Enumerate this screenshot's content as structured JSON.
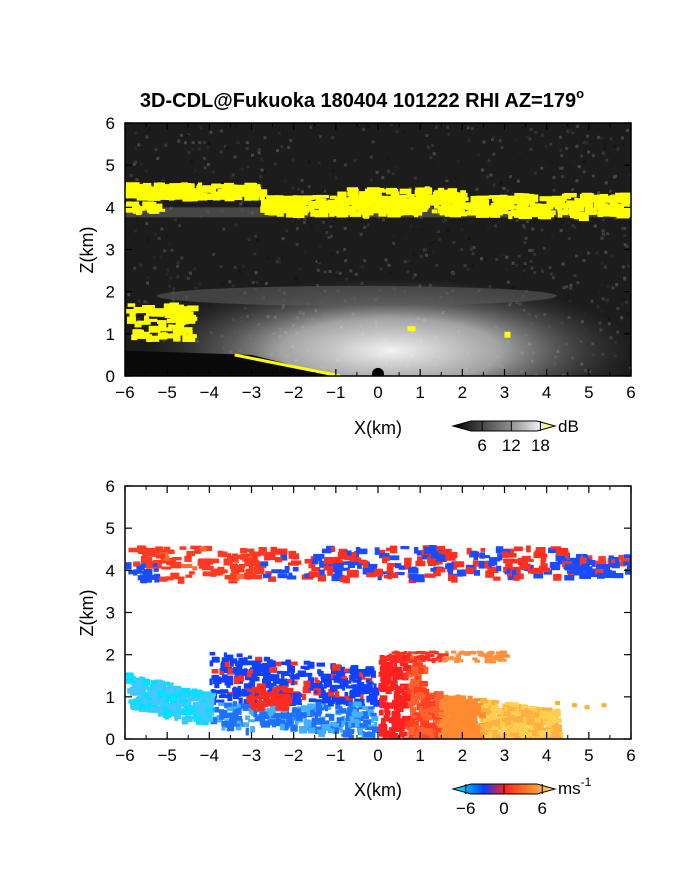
{
  "title": "3D-CDL@Fukuoka 180404 101222 RHI AZ=179",
  "title_superscript": "o",
  "colors": {
    "frame": "#000000",
    "background_top": "#1c1c1c",
    "echo_bright": "#ffffff",
    "highlight": "#ffff00",
    "velocity_negative": "#0040ff",
    "velocity_zero": "#ff2020",
    "velocity_positive": "#ffe060",
    "velocity_min": "#00ffff"
  },
  "chart_data": [
    {
      "type": "heatmap",
      "name": "reflectivity-panel",
      "quantity": "backscatter intensity",
      "xlabel": "X(km)",
      "ylabel": "Z(km)",
      "xlim": [
        -6,
        6
      ],
      "ylim": [
        0,
        6
      ],
      "x_ticks": [
        -6,
        -5,
        -4,
        -3,
        -2,
        -1,
        0,
        1,
        2,
        3,
        4,
        5,
        6
      ],
      "y_ticks": [
        0,
        1,
        2,
        3,
        4,
        5,
        6
      ],
      "colorbar": {
        "unit": "dB",
        "ticks": [
          6,
          12,
          18
        ],
        "range": [
          0,
          21
        ],
        "colormap": "grayscale-to-yellow"
      },
      "features": [
        {
          "kind": "cloud-layer",
          "x_range": [
            -6,
            6
          ],
          "z_range": [
            3.8,
            4.6
          ],
          "value_dB": 20
        },
        {
          "kind": "boundary-layer-echo",
          "x_range": [
            -6,
            6
          ],
          "z_range": [
            0,
            2.3
          ],
          "peak_value_dB": 16,
          "peak_x": 0,
          "peak_z": 0.7
        },
        {
          "kind": "elevated-echo",
          "x_range": [
            -6,
            -4.5
          ],
          "z_range": [
            0.9,
            1.8
          ],
          "value_dB": 19
        }
      ]
    },
    {
      "type": "heatmap",
      "name": "velocity-panel",
      "quantity": "Doppler velocity",
      "xlabel": "X(km)",
      "ylabel": "Z(km)",
      "xlim": [
        -6,
        6
      ],
      "ylim": [
        0,
        6
      ],
      "x_ticks": [
        -6,
        -5,
        -4,
        -3,
        -2,
        -1,
        0,
        1,
        2,
        3,
        4,
        5,
        6
      ],
      "y_ticks": [
        0,
        1,
        2,
        3,
        4,
        5,
        6
      ],
      "colorbar": {
        "unit": "ms",
        "unit_exponent": "-1",
        "ticks": [
          -6,
          0,
          6
        ],
        "range": [
          -8,
          8
        ],
        "colormap": "cyan-blue-red-yellow"
      },
      "features": [
        {
          "kind": "cloud-layer",
          "x_range": [
            -6,
            6
          ],
          "z_range": [
            3.8,
            4.6
          ],
          "velocity_ms": [
            -4,
            2
          ]
        },
        {
          "kind": "negative-flow",
          "x_range": [
            -6,
            -0.2
          ],
          "z_range": [
            0,
            2.2
          ],
          "velocity_ms": [
            -8,
            -2
          ]
        },
        {
          "kind": "positive-flow",
          "x_range": [
            0,
            4
          ],
          "z_range": [
            0,
            2.1
          ],
          "velocity_ms": [
            0,
            6
          ]
        }
      ]
    }
  ]
}
